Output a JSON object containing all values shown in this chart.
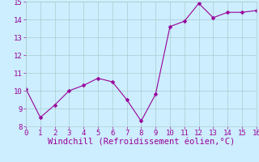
{
  "x": [
    0,
    1,
    2,
    3,
    4,
    5,
    6,
    7,
    8,
    9,
    10,
    11,
    12,
    13,
    14,
    15,
    16
  ],
  "y": [
    10.1,
    8.5,
    9.2,
    10.0,
    10.3,
    10.7,
    10.5,
    9.5,
    8.3,
    9.8,
    13.6,
    13.9,
    14.9,
    14.1,
    14.4,
    14.4,
    14.5
  ],
  "line_color": "#990099",
  "marker_color": "#990099",
  "bg_color": "#cceeff",
  "grid_color": "#aacccc",
  "xlabel": "Windchill (Refroidissement éolien,°C)",
  "xlabel_color": "#990099",
  "ylim": [
    8,
    15
  ],
  "xlim": [
    0,
    16
  ],
  "yticks": [
    8,
    9,
    10,
    11,
    12,
    13,
    14,
    15
  ],
  "xticks": [
    0,
    1,
    2,
    3,
    4,
    5,
    6,
    7,
    8,
    9,
    10,
    11,
    12,
    13,
    14,
    15,
    16
  ],
  "tick_color": "#990099",
  "tick_fontsize": 6.5,
  "xlabel_fontsize": 7.5,
  "marker_size": 2.5,
  "line_width": 0.8
}
